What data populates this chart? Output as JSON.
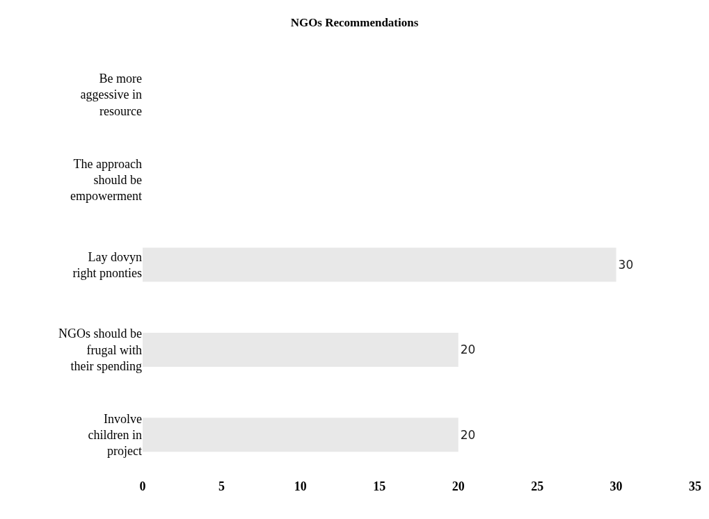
{
  "chart_data": {
    "type": "bar",
    "title": "NGOs Recommendations",
    "orientation": "horizontal",
    "categories": [
      "Be more aggessive in resource",
      "The approach should be empowerment",
      "Lay dovyn right pnonties",
      "NGOs should be frugal with their spending",
      "Involve children in project"
    ],
    "values": [
      null,
      null,
      30,
      20,
      20
    ],
    "color": "#e8e8e8",
    "data_labels": true,
    "xlim": [
      0,
      35
    ],
    "xticks": [
      0,
      5,
      10,
      15,
      20,
      25,
      30,
      35
    ],
    "grid": false
  }
}
